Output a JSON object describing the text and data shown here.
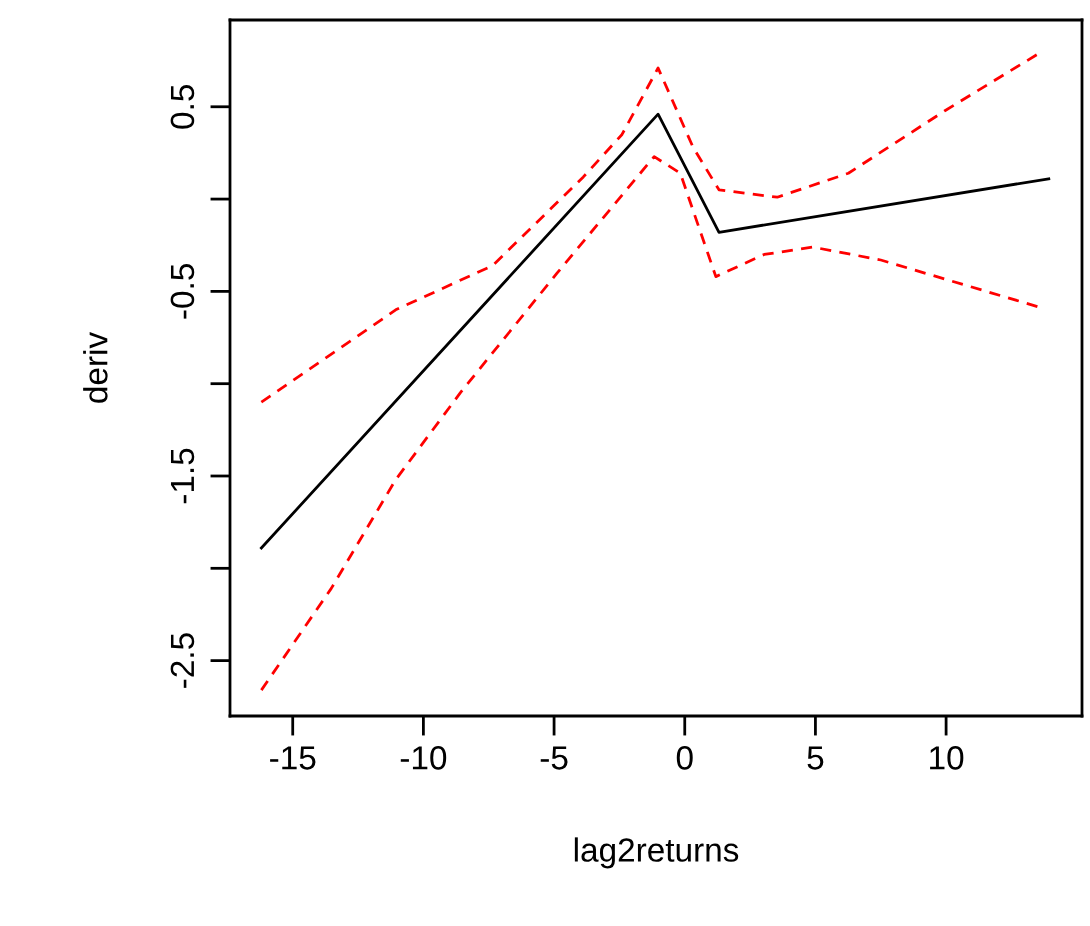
{
  "chart_data": {
    "type": "line",
    "xlabel": "lag2returns",
    "ylabel": "deriv",
    "xlim": [
      -17.4,
      15.2
    ],
    "ylim": [
      -2.8,
      0.97
    ],
    "xticks": [
      -15,
      -10,
      -5,
      0,
      5,
      10
    ],
    "yticks": [
      {
        "value": -2.5,
        "label": "-2.5"
      },
      {
        "value": -2,
        "label": null
      },
      {
        "value": -1.5,
        "label": "-1.5"
      },
      {
        "value": -1,
        "label": null
      },
      {
        "value": -0.5,
        "label": "-0.5"
      },
      {
        "value": 0,
        "label": null
      },
      {
        "value": 0.5,
        "label": "0.5"
      }
    ],
    "grid": false,
    "legend": false,
    "series": [
      {
        "color": "#000000",
        "line_style": "solid",
        "x": [
          -16.2,
          -1.02,
          1.31,
          4.78,
          13.93
        ],
        "values": [
          -1.89,
          0.46,
          -0.18,
          -0.1,
          0.11
        ]
      },
      {
        "color": "#ff0000",
        "line_style": "dashed",
        "x": [
          -16.2,
          -11.06,
          -7.35,
          -3.88,
          -2.4,
          -1.02,
          0.32,
          1.31,
          3.54,
          6.26,
          9.97,
          13.68
        ],
        "values": [
          -1.1,
          -0.6,
          -0.36,
          0.12,
          0.35,
          0.71,
          0.28,
          0.05,
          0.01,
          0.14,
          0.48,
          0.8
        ]
      },
      {
        "color": "#ff0000",
        "line_style": "dashed",
        "x": [
          -16.2,
          -13.53,
          -11.06,
          -8.59,
          -4.88,
          -1.17,
          -0.17,
          1.19,
          3.04,
          4.9,
          7.5,
          13.68
        ],
        "values": [
          -2.66,
          -2.11,
          -1.52,
          -1.05,
          -0.4,
          0.23,
          0.14,
          -0.42,
          -0.3,
          -0.26,
          -0.33,
          -0.59
        ]
      }
    ]
  }
}
